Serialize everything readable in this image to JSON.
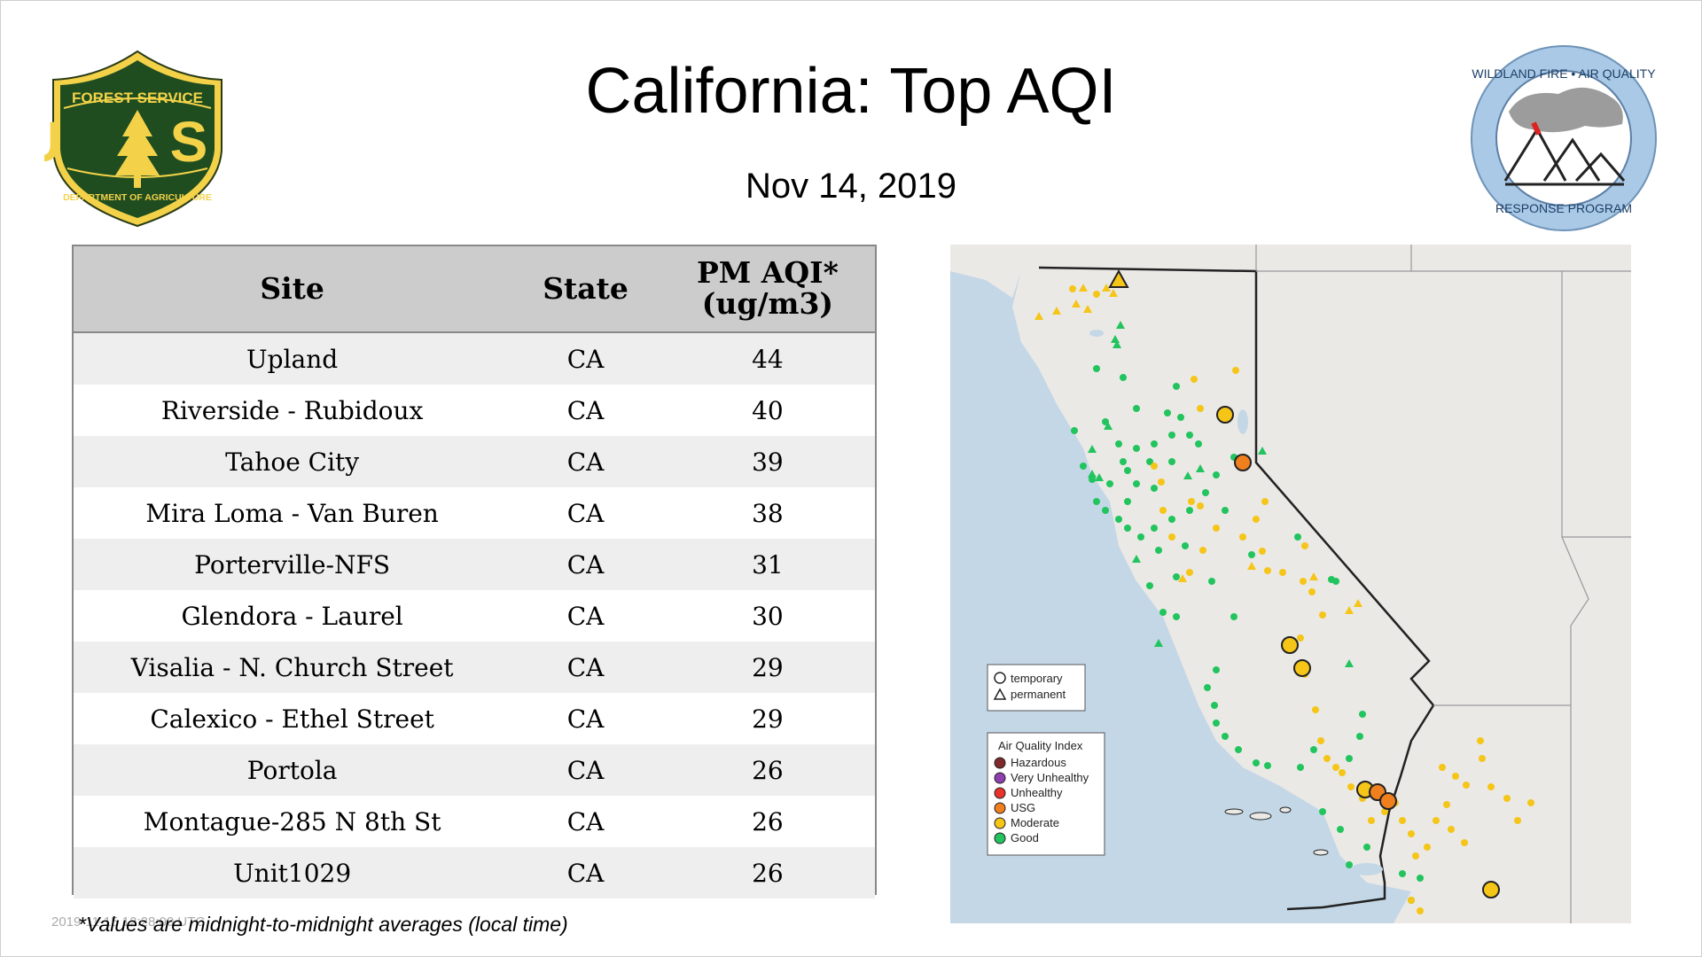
{
  "header": {
    "title": "California: Top AQI",
    "date": "Nov 14, 2019"
  },
  "logos": {
    "forest_service": {
      "top_text": "FOREST SERVICE",
      "letters": "U S",
      "bottom_text": "DEPARTMENT OF AGRICULTURE"
    },
    "wildland_fire": {
      "ring_top": "WILDLAND FIRE • AIR QUALITY",
      "ring_bottom": "RESPONSE PROGRAM"
    }
  },
  "table": {
    "headers": {
      "site": "Site",
      "state": "State",
      "aqi_line1": "PM AQI*",
      "aqi_line2": "(ug/m3)"
    },
    "rows": [
      {
        "site": "Upland",
        "state": "CA",
        "aqi": "44"
      },
      {
        "site": "Riverside - Rubidoux",
        "state": "CA",
        "aqi": "40"
      },
      {
        "site": "Tahoe City",
        "state": "CA",
        "aqi": "39"
      },
      {
        "site": "Mira Loma - Van Buren",
        "state": "CA",
        "aqi": "38"
      },
      {
        "site": "Porterville-NFS",
        "state": "CA",
        "aqi": "31"
      },
      {
        "site": "Glendora - Laurel",
        "state": "CA",
        "aqi": "30"
      },
      {
        "site": "Visalia - N. Church Street",
        "state": "CA",
        "aqi": "29"
      },
      {
        "site": "Calexico - Ethel Street",
        "state": "CA",
        "aqi": "29"
      },
      {
        "site": "Portola",
        "state": "CA",
        "aqi": "26"
      },
      {
        "site": "Montague-285 N 8th St",
        "state": "CA",
        "aqi": "26"
      },
      {
        "site": "Unit1029",
        "state": "CA",
        "aqi": "26"
      }
    ]
  },
  "footnote": "*Values are midnight-to-midnight averages (local time)",
  "timestamp": "2019-11-15 12:28:00 UTC",
  "map": {
    "legend_shapes": {
      "temporary": "temporary",
      "permanent": "permanent"
    },
    "legend_aqi": {
      "title": "Air Quality Index",
      "items": [
        {
          "label": "Hazardous",
          "color": "#7e2a2a"
        },
        {
          "label": "Very Unhealthy",
          "color": "#8e3fb0"
        },
        {
          "label": "Unhealthy",
          "color": "#e8322b"
        },
        {
          "label": "USG",
          "color": "#f07f1e"
        },
        {
          "label": "Moderate",
          "color": "#f5c518"
        },
        {
          "label": "Good",
          "color": "#22c45e"
        }
      ]
    }
  },
  "colors": {
    "good": "#22c45e",
    "moderate": "#f5c518",
    "usg": "#f07f1e",
    "water": "#c4d7e6",
    "land": "#ebe9e6"
  }
}
